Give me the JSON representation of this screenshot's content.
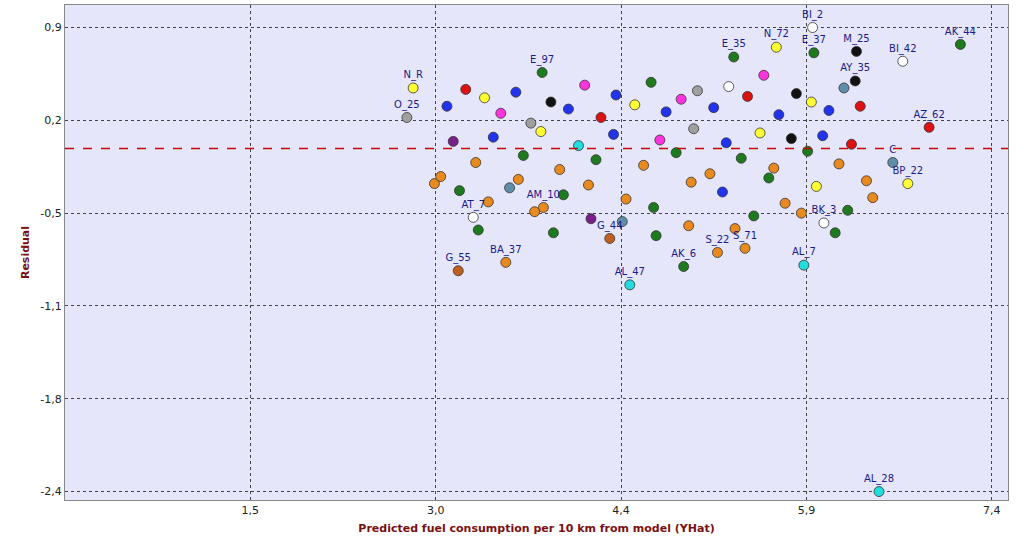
{
  "chart_data": {
    "type": "scatter",
    "x_label": "Predicted fuel consumption per 10 km from model (YHat)",
    "y_label": "Residual",
    "xlim": [
      0,
      7.53
    ],
    "ylim": [
      -2.5,
      1.02
    ],
    "xticks": [
      {
        "value": 1.48,
        "label": "1,5"
      },
      {
        "value": 2.96,
        "label": "3,0"
      },
      {
        "value": 4.44,
        "label": "4,4"
      },
      {
        "value": 5.92,
        "label": "5,9"
      },
      {
        "value": 7.4,
        "label": "7,4"
      }
    ],
    "yticks": [
      {
        "value": 0.86,
        "label": "0,9"
      },
      {
        "value": 0.2,
        "label": "0,2"
      },
      {
        "value": -0.46,
        "label": "-0,5"
      },
      {
        "value": -1.12,
        "label": "-1,1"
      },
      {
        "value": -1.78,
        "label": "-1,8"
      },
      {
        "value": -2.44,
        "label": "-2,4"
      }
    ],
    "grid": true,
    "marker": "circle",
    "reference_line": {
      "y": 0,
      "color": "#cc0000",
      "line_style": "dash"
    },
    "x": [
      5.97,
      7.15,
      6.69,
      6.32,
      6.9,
      6.73,
      6.61,
      6.5,
      5.9,
      4.51,
      4.94,
      5.21,
      5.43,
      3.14,
      3.52,
      4.35,
      3.26,
      3.82,
      3.81,
      2.78,
      2.73,
      5.34,
      5.68,
      5.98,
      6.31,
      6.06,
      3.05,
      3.2,
      3.35,
      3.48,
      3.6,
      3.72,
      3.88,
      4.02,
      4.15,
      4.28,
      4.4,
      4.55,
      4.68,
      4.8,
      4.92,
      5.05,
      5.18,
      5.3,
      5.45,
      5.58,
      5.7,
      5.84,
      5.96,
      6.1,
      6.22,
      6.35,
      3.1,
      3.28,
      3.42,
      3.66,
      3.8,
      3.95,
      4.1,
      4.24,
      4.38,
      4.62,
      4.75,
      4.88,
      5.02,
      5.15,
      5.28,
      5.4,
      5.55,
      5.66,
      5.8,
      5.93,
      6.05,
      6.18,
      6.28,
      2.95,
      3.15,
      3.38,
      3.55,
      3.75,
      3.98,
      4.2,
      4.48,
      4.7,
      4.98,
      5.25,
      5.5,
      5.75,
      6.0,
      6.25,
      6.45,
      3.0,
      3.3,
      3.62,
      3.9,
      4.18,
      4.45,
      4.72,
      5.0,
      5.35,
      5.62,
      5.88,
      6.15,
      6.4
    ],
    "values": [
      0.86,
      0.74,
      0.62,
      0.69,
      0.15,
      -0.25,
      -0.1,
      -2.44,
      -0.83,
      -0.97,
      -0.84,
      -0.74,
      -0.71,
      -0.87,
      -0.81,
      -0.64,
      -0.49,
      -0.42,
      0.54,
      0.43,
      0.22,
      0.65,
      0.72,
      0.68,
      0.48,
      -0.53,
      0.3,
      0.42,
      0.36,
      0.25,
      0.4,
      0.18,
      0.33,
      0.28,
      0.45,
      0.22,
      0.38,
      0.31,
      0.47,
      0.26,
      0.35,
      0.41,
      0.29,
      0.44,
      0.37,
      0.52,
      0.24,
      0.39,
      0.33,
      0.27,
      0.43,
      0.3,
      0.05,
      -0.1,
      0.08,
      -0.05,
      0.12,
      -0.15,
      0.02,
      -0.08,
      0.1,
      -0.12,
      0.06,
      -0.03,
      0.14,
      -0.18,
      0.04,
      -0.07,
      0.11,
      -0.14,
      0.07,
      -0.02,
      0.09,
      -0.11,
      0.03,
      -0.25,
      -0.3,
      -0.38,
      -0.28,
      -0.45,
      -0.33,
      -0.5,
      -0.36,
      -0.42,
      -0.55,
      -0.31,
      -0.48,
      -0.39,
      -0.27,
      -0.44,
      -0.35,
      -0.2,
      -0.58,
      -0.22,
      -0.6,
      -0.26,
      -0.52,
      -0.62,
      -0.24,
      -0.57,
      -0.21,
      -0.46,
      -0.6,
      -0.23
    ],
    "colors": [
      "#ffffff",
      "#1e7a1e",
      "#ffffff",
      "#111111",
      "#dd1111",
      "#ffff33",
      "#5f8fa8",
      "#22dddd",
      "#22dddd",
      "#22dddd",
      "#1e7a1e",
      "#e88a1e",
      "#e88a1e",
      "#c06020",
      "#e88a1e",
      "#c06020",
      "#ffffff",
      "#e88a1e",
      "#1e7a1e",
      "#ffff33",
      "#a0a0a0",
      "#1e7a1e",
      "#ffff33",
      "#1e7a1e",
      "#111111",
      "#ffffff",
      "#2233ee",
      "#dd1111",
      "#ffff33",
      "#ff33dd",
      "#2233ee",
      "#a0a0a0",
      "#111111",
      "#2233ee",
      "#ff33dd",
      "#dd1111",
      "#2233ee",
      "#ffff33",
      "#1e7a1e",
      "#2233ee",
      "#ff33dd",
      "#a0a0a0",
      "#2233ee",
      "#ffffff",
      "#dd1111",
      "#ff33dd",
      "#2233ee",
      "#111111",
      "#ffff33",
      "#2233ee",
      "#5f8fa8",
      "#dd1111",
      "#7a1e8a",
      "#e88a1e",
      "#2233ee",
      "#1e7a1e",
      "#ffff33",
      "#e88a1e",
      "#22dddd",
      "#1e7a1e",
      "#2233ee",
      "#e88a1e",
      "#ff33dd",
      "#1e7a1e",
      "#a0a0a0",
      "#e88a1e",
      "#2233ee",
      "#1e7a1e",
      "#ffff33",
      "#e88a1e",
      "#111111",
      "#1e7a1e",
      "#2233ee",
      "#e88a1e",
      "#dd1111",
      "#e88a1e",
      "#1e7a1e",
      "#e88a1e",
      "#5f8fa8",
      "#e88a1e",
      "#1e7a1e",
      "#7a1e8a",
      "#e88a1e",
      "#1e7a1e",
      "#e88a1e",
      "#2233ee",
      "#1e7a1e",
      "#e88a1e",
      "#ffff33",
      "#1e7a1e",
      "#e88a1e",
      "#e88a1e",
      "#1e7a1e",
      "#e88a1e",
      "#1e7a1e",
      "#e88a1e",
      "#5f8fa8",
      "#1e7a1e",
      "#e88a1e",
      "#e88a1e",
      "#1e7a1e",
      "#e88a1e",
      "#1e7a1e",
      "#e88a1e"
    ],
    "labels": [
      "BI_2",
      "AK_44",
      "BI_42",
      "M_25",
      "AZ_62",
      "BP_22",
      "C",
      "AL_28",
      "AL_7",
      "AL_47",
      "AK_6",
      "S_22",
      "S_71",
      "G_55",
      "BA_37",
      "G_44",
      "AT_7",
      "AM_10",
      "E_97",
      "N_R",
      "O_25",
      "E_35",
      "N_72",
      "E_37",
      "AY_35",
      "BK_3",
      null,
      null,
      null,
      null,
      null,
      null,
      null,
      null,
      null,
      null,
      null,
      null,
      null,
      null,
      null,
      null,
      null,
      null,
      null,
      null,
      null,
      null,
      null,
      null,
      null,
      null,
      null,
      null,
      null,
      null,
      null,
      null,
      null,
      null,
      null,
      null,
      null,
      null,
      null,
      null,
      null,
      null,
      null,
      null,
      null,
      null,
      null,
      null,
      null,
      null,
      null,
      null,
      null,
      null,
      null,
      null,
      null,
      null,
      null,
      null,
      null,
      null,
      null,
      null,
      null,
      null,
      null,
      null,
      null,
      null,
      null,
      null,
      null,
      null,
      null,
      null,
      null,
      null
    ]
  }
}
